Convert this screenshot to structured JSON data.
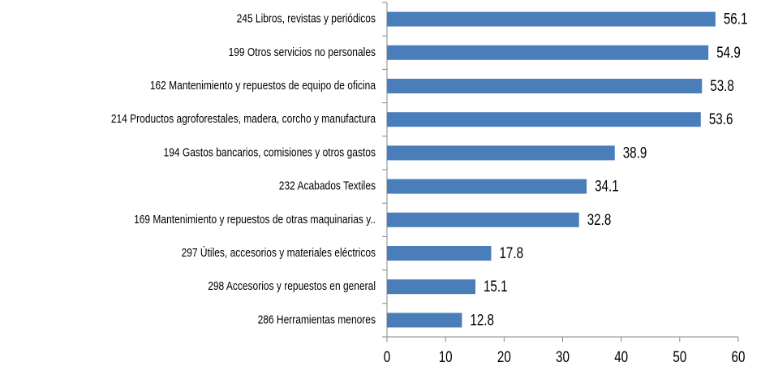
{
  "chart_data": {
    "type": "barh",
    "categories": [
      "245 Libros, revistas y periódicos",
      "199 Otros servicios no personales",
      "162 Mantenimiento y repuestos de  equipo de oficina",
      "214 Productos agroforestales, madera, corcho y manufactura",
      "194 Gastos bancarios, comisiones y otros gastos",
      "232 Acabados Textiles",
      "169 Mantenimiento y repuestos de  otras maquinarias y..",
      "297 Útiles, accesorios y materiales eléctricos",
      "298 Accesorios y repuestos en general",
      "286 Herramientas menores"
    ],
    "values": [
      56.1,
      54.9,
      53.8,
      53.6,
      38.9,
      34.1,
      32.8,
      17.8,
      15.1,
      12.8
    ],
    "color": "#4a7ebb",
    "xlim": [
      0,
      60
    ],
    "xticks": [
      0,
      10,
      20,
      30,
      40,
      50,
      60
    ]
  }
}
